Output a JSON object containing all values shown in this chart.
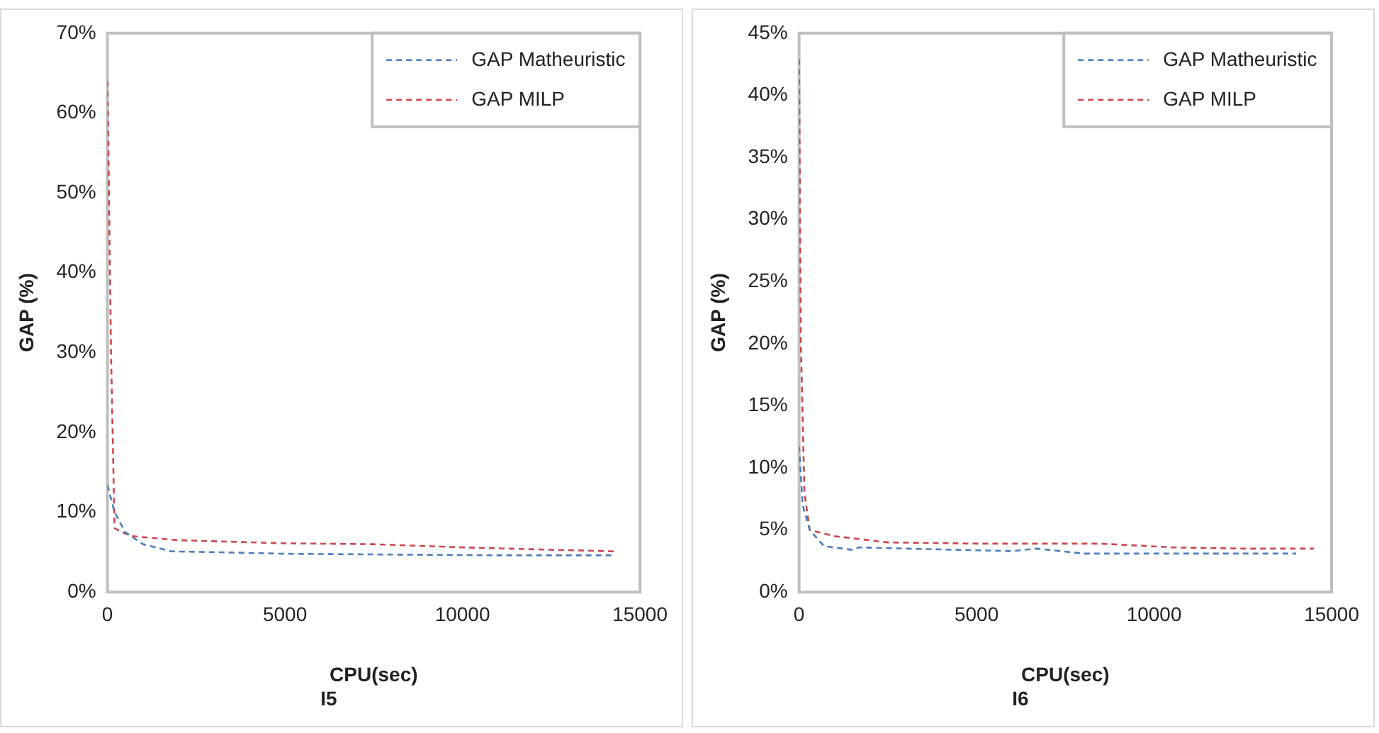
{
  "chart_data": [
    {
      "type": "line",
      "title": "I5",
      "xlabel": "CPU(sec)",
      "ylabel": "GAP (%)",
      "xlim": [
        0,
        15000
      ],
      "xticks": [
        0,
        5000,
        10000,
        15000
      ],
      "ylim": [
        0,
        70
      ],
      "yticks": [
        {
          "value": 0,
          "label": "0%"
        },
        {
          "value": 10,
          "label": "10%"
        },
        {
          "value": 20,
          "label": "20%"
        },
        {
          "value": 30,
          "label": "30%"
        },
        {
          "value": 40,
          "label": "40%"
        },
        {
          "value": 50,
          "label": "50%"
        },
        {
          "value": 60,
          "label": "60%"
        },
        {
          "value": 70,
          "label": "70%"
        }
      ],
      "grid": false,
      "legend": "top right",
      "marker": "none",
      "line_style": "dashed",
      "series": [
        {
          "name": "GAP Matheuristic",
          "color": "#4a7ebb",
          "x": [
            0,
            200,
            500,
            1000,
            1800,
            3000,
            5000,
            8000,
            11000,
            14300
          ],
          "values": [
            13.4,
            10,
            7.5,
            6,
            5.1,
            5,
            4.8,
            4.7,
            4.6,
            4.6
          ]
        },
        {
          "name": "GAP MILP",
          "color": "#c9474b",
          "x": [
            0,
            100,
            200,
            400,
            700,
            1200,
            2000,
            3500,
            5000,
            7500,
            10000,
            12500,
            14300
          ],
          "values": [
            64,
            30,
            8,
            7.5,
            7,
            6.8,
            6.5,
            6.3,
            6.1,
            6,
            5.6,
            5.3,
            5.1
          ]
        }
      ]
    },
    {
      "type": "line",
      "title": "I6",
      "xlabel": "CPU(sec)",
      "ylabel": "GAP (%)",
      "xlim": [
        0,
        15000
      ],
      "xticks": [
        0,
        5000,
        10000,
        15000
      ],
      "ylim": [
        0,
        45
      ],
      "yticks": [
        {
          "value": 0,
          "label": "0%"
        },
        {
          "value": 5,
          "label": "5%"
        },
        {
          "value": 10,
          "label": "10%"
        },
        {
          "value": 15,
          "label": "15%"
        },
        {
          "value": 20,
          "label": "20%"
        },
        {
          "value": 25,
          "label": "25%"
        },
        {
          "value": 30,
          "label": "30%"
        },
        {
          "value": 35,
          "label": "35%"
        },
        {
          "value": 40,
          "label": "40%"
        },
        {
          "value": 45,
          "label": "45%"
        }
      ],
      "grid": false,
      "legend": "top right",
      "marker": "none",
      "line_style": "dashed",
      "series": [
        {
          "name": "GAP Matheuristic",
          "color": "#4a7ebb",
          "x": [
            0,
            100,
            300,
            700,
            1500,
            1700,
            3000,
            4500,
            6000,
            6700,
            8000,
            11000,
            14000
          ],
          "values": [
            11.7,
            7,
            5,
            3.7,
            3.4,
            3.6,
            3.5,
            3.4,
            3.3,
            3.5,
            3.1,
            3.1,
            3.1
          ]
        },
        {
          "name": "GAP MILP",
          "color": "#c9474b",
          "x": [
            0,
            50,
            150,
            300,
            1000,
            2500,
            5000,
            8500,
            10500,
            12500,
            14500
          ],
          "values": [
            42.9,
            20,
            8,
            5,
            4.5,
            4,
            3.9,
            3.9,
            3.6,
            3.5,
            3.5
          ]
        }
      ]
    }
  ]
}
